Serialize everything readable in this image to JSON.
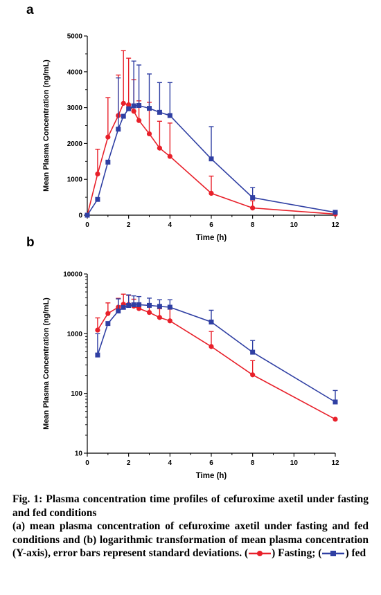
{
  "chart_data": [
    {
      "type": "line",
      "panel": "a",
      "x": [
        0,
        0.5,
        1,
        1.5,
        1.75,
        2,
        2.25,
        2.5,
        3,
        3.5,
        4,
        6,
        8,
        12
      ],
      "series": [
        {
          "color": "#e8202a",
          "marker": "circle",
          "values": [
            0,
            1150,
            2180,
            2780,
            3120,
            3080,
            2900,
            2640,
            2270,
            1870,
            1640,
            610,
            200,
            30
          ],
          "err_plus": [
            0,
            690,
            1100,
            1130,
            1470,
            1300,
            880,
            550,
            880,
            750,
            930,
            480,
            200,
            0
          ]
        },
        {
          "color": "#2f3fa3",
          "marker": "square",
          "values": [
            0,
            440,
            1480,
            2400,
            2760,
            2970,
            3050,
            3060,
            2980,
            2870,
            2780,
            1570,
            490,
            80
          ],
          "err_plus": [
            0,
            0,
            0,
            1430,
            0,
            0,
            1250,
            1130,
            960,
            830,
            920,
            900,
            280,
            0
          ]
        }
      ],
      "xlabel": "Time (h)",
      "ylabel": "Mean Plasma Concentration (ng/mL)",
      "xlim": [
        0,
        12
      ],
      "ylim": [
        0,
        5000
      ],
      "xticks": [
        0,
        2,
        4,
        6,
        8,
        10,
        12
      ],
      "yticks": [
        0,
        1000,
        2000,
        3000,
        4000,
        5000
      ],
      "grid": false
    },
    {
      "type": "line",
      "panel": "b",
      "yscale": "log",
      "x": [
        0.5,
        1,
        1.5,
        1.75,
        2,
        2.25,
        2.5,
        3,
        3.5,
        4,
        6,
        8,
        12
      ],
      "series": [
        {
          "color": "#e8202a",
          "marker": "circle",
          "values": [
            1150,
            2180,
            2780,
            3120,
            3080,
            2900,
            2640,
            2270,
            1870,
            1640,
            610,
            205,
            37
          ],
          "err_plus": [
            690,
            1100,
            1130,
            1470,
            1300,
            880,
            550,
            880,
            750,
            930,
            480,
            150,
            0
          ]
        },
        {
          "color": "#2f3fa3",
          "marker": "square",
          "values": [
            440,
            1480,
            2400,
            2760,
            2970,
            3050,
            3060,
            2980,
            2870,
            2780,
            1570,
            490,
            72
          ],
          "err_plus": [
            560,
            0,
            1430,
            0,
            1500,
            1250,
            1130,
            960,
            830,
            920,
            900,
            280,
            40
          ]
        }
      ],
      "xlabel": "Time (h)",
      "ylabel": "Mean Plasma Concentration (ng/mL)",
      "xlim": [
        0,
        12
      ],
      "ylim": [
        10,
        10000
      ],
      "xticks": [
        0,
        2,
        4,
        6,
        8,
        10,
        12
      ],
      "yticks": [
        10,
        100,
        1000,
        10000
      ],
      "grid": false
    }
  ],
  "panel_labels": {
    "a": "a",
    "b": "b"
  },
  "caption": {
    "title": "Fig. 1: Plasma concentration time profiles of cefuroxime axetil under fasting and fed conditions",
    "body": "(a) mean plasma concentration of cefuroxime axetil under fasting and fed conditions and (b) logarithmic transformation of mean plasma concentration (Y-axis), error bars represent standard deviations.",
    "legend_open": "(",
    "fasting_label": ") Fasting; (",
    "fed_label": ") fed"
  }
}
